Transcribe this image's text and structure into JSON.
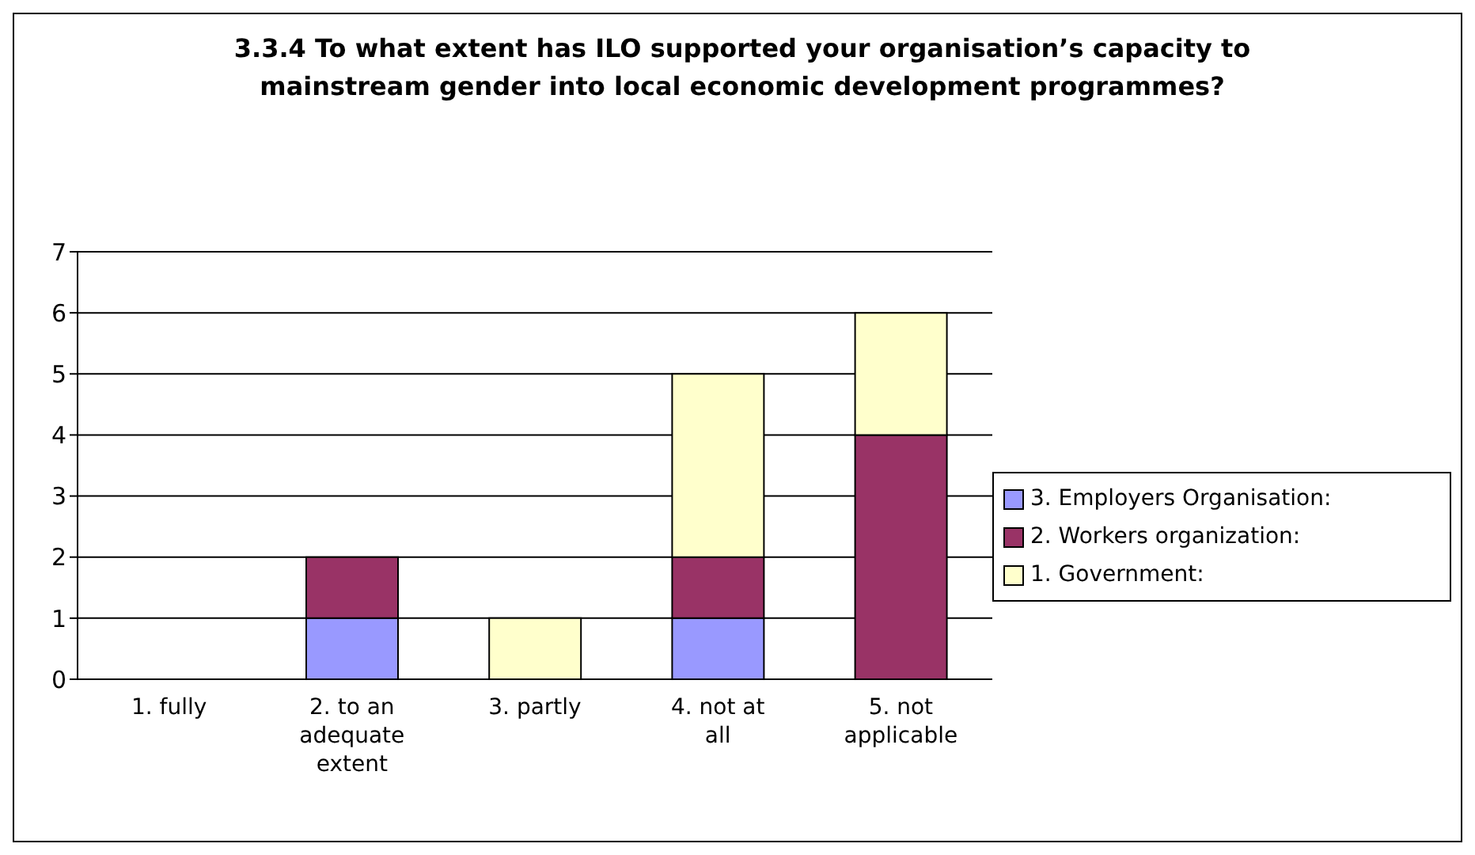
{
  "chart_data": {
    "type": "bar",
    "title": "3.3.4 To what extent has ILO supported your organisation’s capacity to mainstream gender into local economic development programmes?",
    "categories": [
      "1. fully",
      "2. to an adequate extent",
      "3. partly",
      "4. not at all",
      "5. not applicable"
    ],
    "stacked": true,
    "series": [
      {
        "name": "3. Employers Organisation:",
        "color": "#9999ff",
        "values": [
          0,
          1,
          0,
          1,
          0
        ]
      },
      {
        "name": "2. Workers organization:",
        "color": "#993366",
        "values": [
          0,
          1,
          0,
          1,
          4
        ]
      },
      {
        "name": "1. Government:",
        "color": "#ffffcc",
        "values": [
          0,
          0,
          1,
          3,
          2
        ]
      }
    ],
    "ylim": [
      0,
      7
    ],
    "yticks": [
      0,
      1,
      2,
      3,
      4,
      5,
      6,
      7
    ],
    "grid": "y",
    "legend": "right"
  }
}
